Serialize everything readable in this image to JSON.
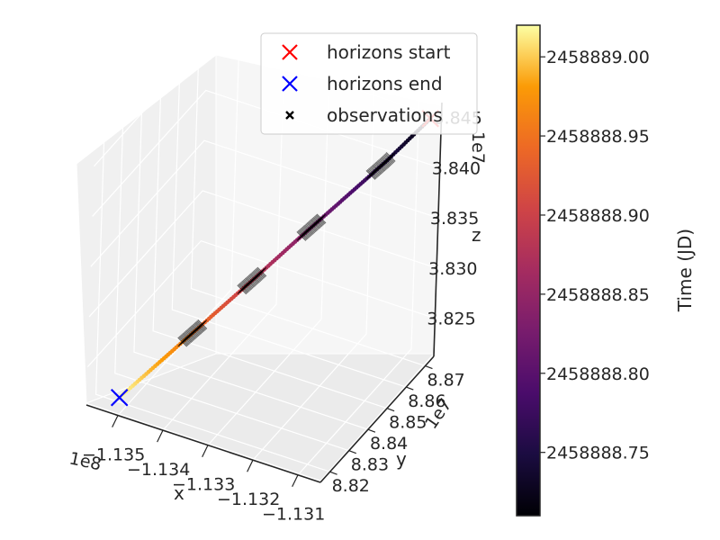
{
  "chart_data": {
    "type": "scatter",
    "projection": "3d",
    "legend": {
      "placement": "top-center",
      "entries": [
        {
          "label": "horizons start",
          "marker": "x",
          "color": "#ff0000"
        },
        {
          "label": "horizons end",
          "marker": "x",
          "color": "#0000ff"
        },
        {
          "label": "observations",
          "marker": "x",
          "color": "#000000"
        }
      ]
    },
    "axes": {
      "x": {
        "label": "x",
        "offset_text": "1e8",
        "ticks": [
          "−1.135",
          "−1.134",
          "−1.133",
          "−1.132",
          "−1.131"
        ],
        "ticks_value": [
          -1.135,
          -1.134,
          -1.133,
          -1.132,
          -1.131
        ]
      },
      "y": {
        "label": "y",
        "offset_text": "1e7",
        "ticks": [
          "8.82",
          "8.83",
          "8.84",
          "8.85",
          "8.86",
          "8.87"
        ],
        "ticks_value": [
          8.82,
          8.83,
          8.84,
          8.85,
          8.86,
          8.87
        ]
      },
      "z": {
        "label": "z",
        "offset_text": "1e7",
        "ticks": [
          "3.825",
          "3.830",
          "3.835",
          "3.840",
          "3.845"
        ],
        "ticks_value": [
          3.825,
          3.83,
          3.835,
          3.84,
          3.845
        ]
      }
    },
    "grid": true,
    "colorbar": {
      "label": "Time (JD)",
      "colormap": "inferno",
      "range": [
        2458888.71,
        2458889.02
      ],
      "ticks": [
        "2458888.75",
        "2458888.80",
        "2458888.85",
        "2458888.90",
        "2458888.95",
        "2458889.00"
      ],
      "ticks_value": [
        2458888.75,
        2458888.8,
        2458888.85,
        2458888.9,
        2458888.95,
        2458889.0
      ]
    },
    "horizons_start": {
      "x": -1.1306,
      "y": 8.871,
      "z": 3.8455
    },
    "horizons_end": {
      "x": -1.1351,
      "y": 8.818,
      "z": 3.8222
    },
    "trajectory": {
      "x": [
        -1.1306,
        -1.13125,
        -1.1319,
        -1.13255,
        -1.1332,
        -1.13385,
        -1.1345,
        -1.1351
      ],
      "y": [
        8.871,
        8.8635,
        8.856,
        8.8485,
        8.841,
        8.8335,
        8.826,
        8.818
      ],
      "z": [
        3.8455,
        3.8418,
        3.8385,
        3.8352,
        3.8318,
        3.8285,
        3.8252,
        3.8222
      ],
      "time_jd": [
        2458888.71,
        2458888.755,
        2458888.8,
        2458888.845,
        2458888.89,
        2458888.935,
        2458888.98,
        2458889.02
      ]
    },
    "observation_segments_time_jd": [
      [
        2458888.75,
        2458888.77
      ],
      [
        2458888.82,
        2458888.84
      ],
      [
        2458888.88,
        2458888.9
      ],
      [
        2458888.94,
        2458888.96
      ]
    ]
  }
}
